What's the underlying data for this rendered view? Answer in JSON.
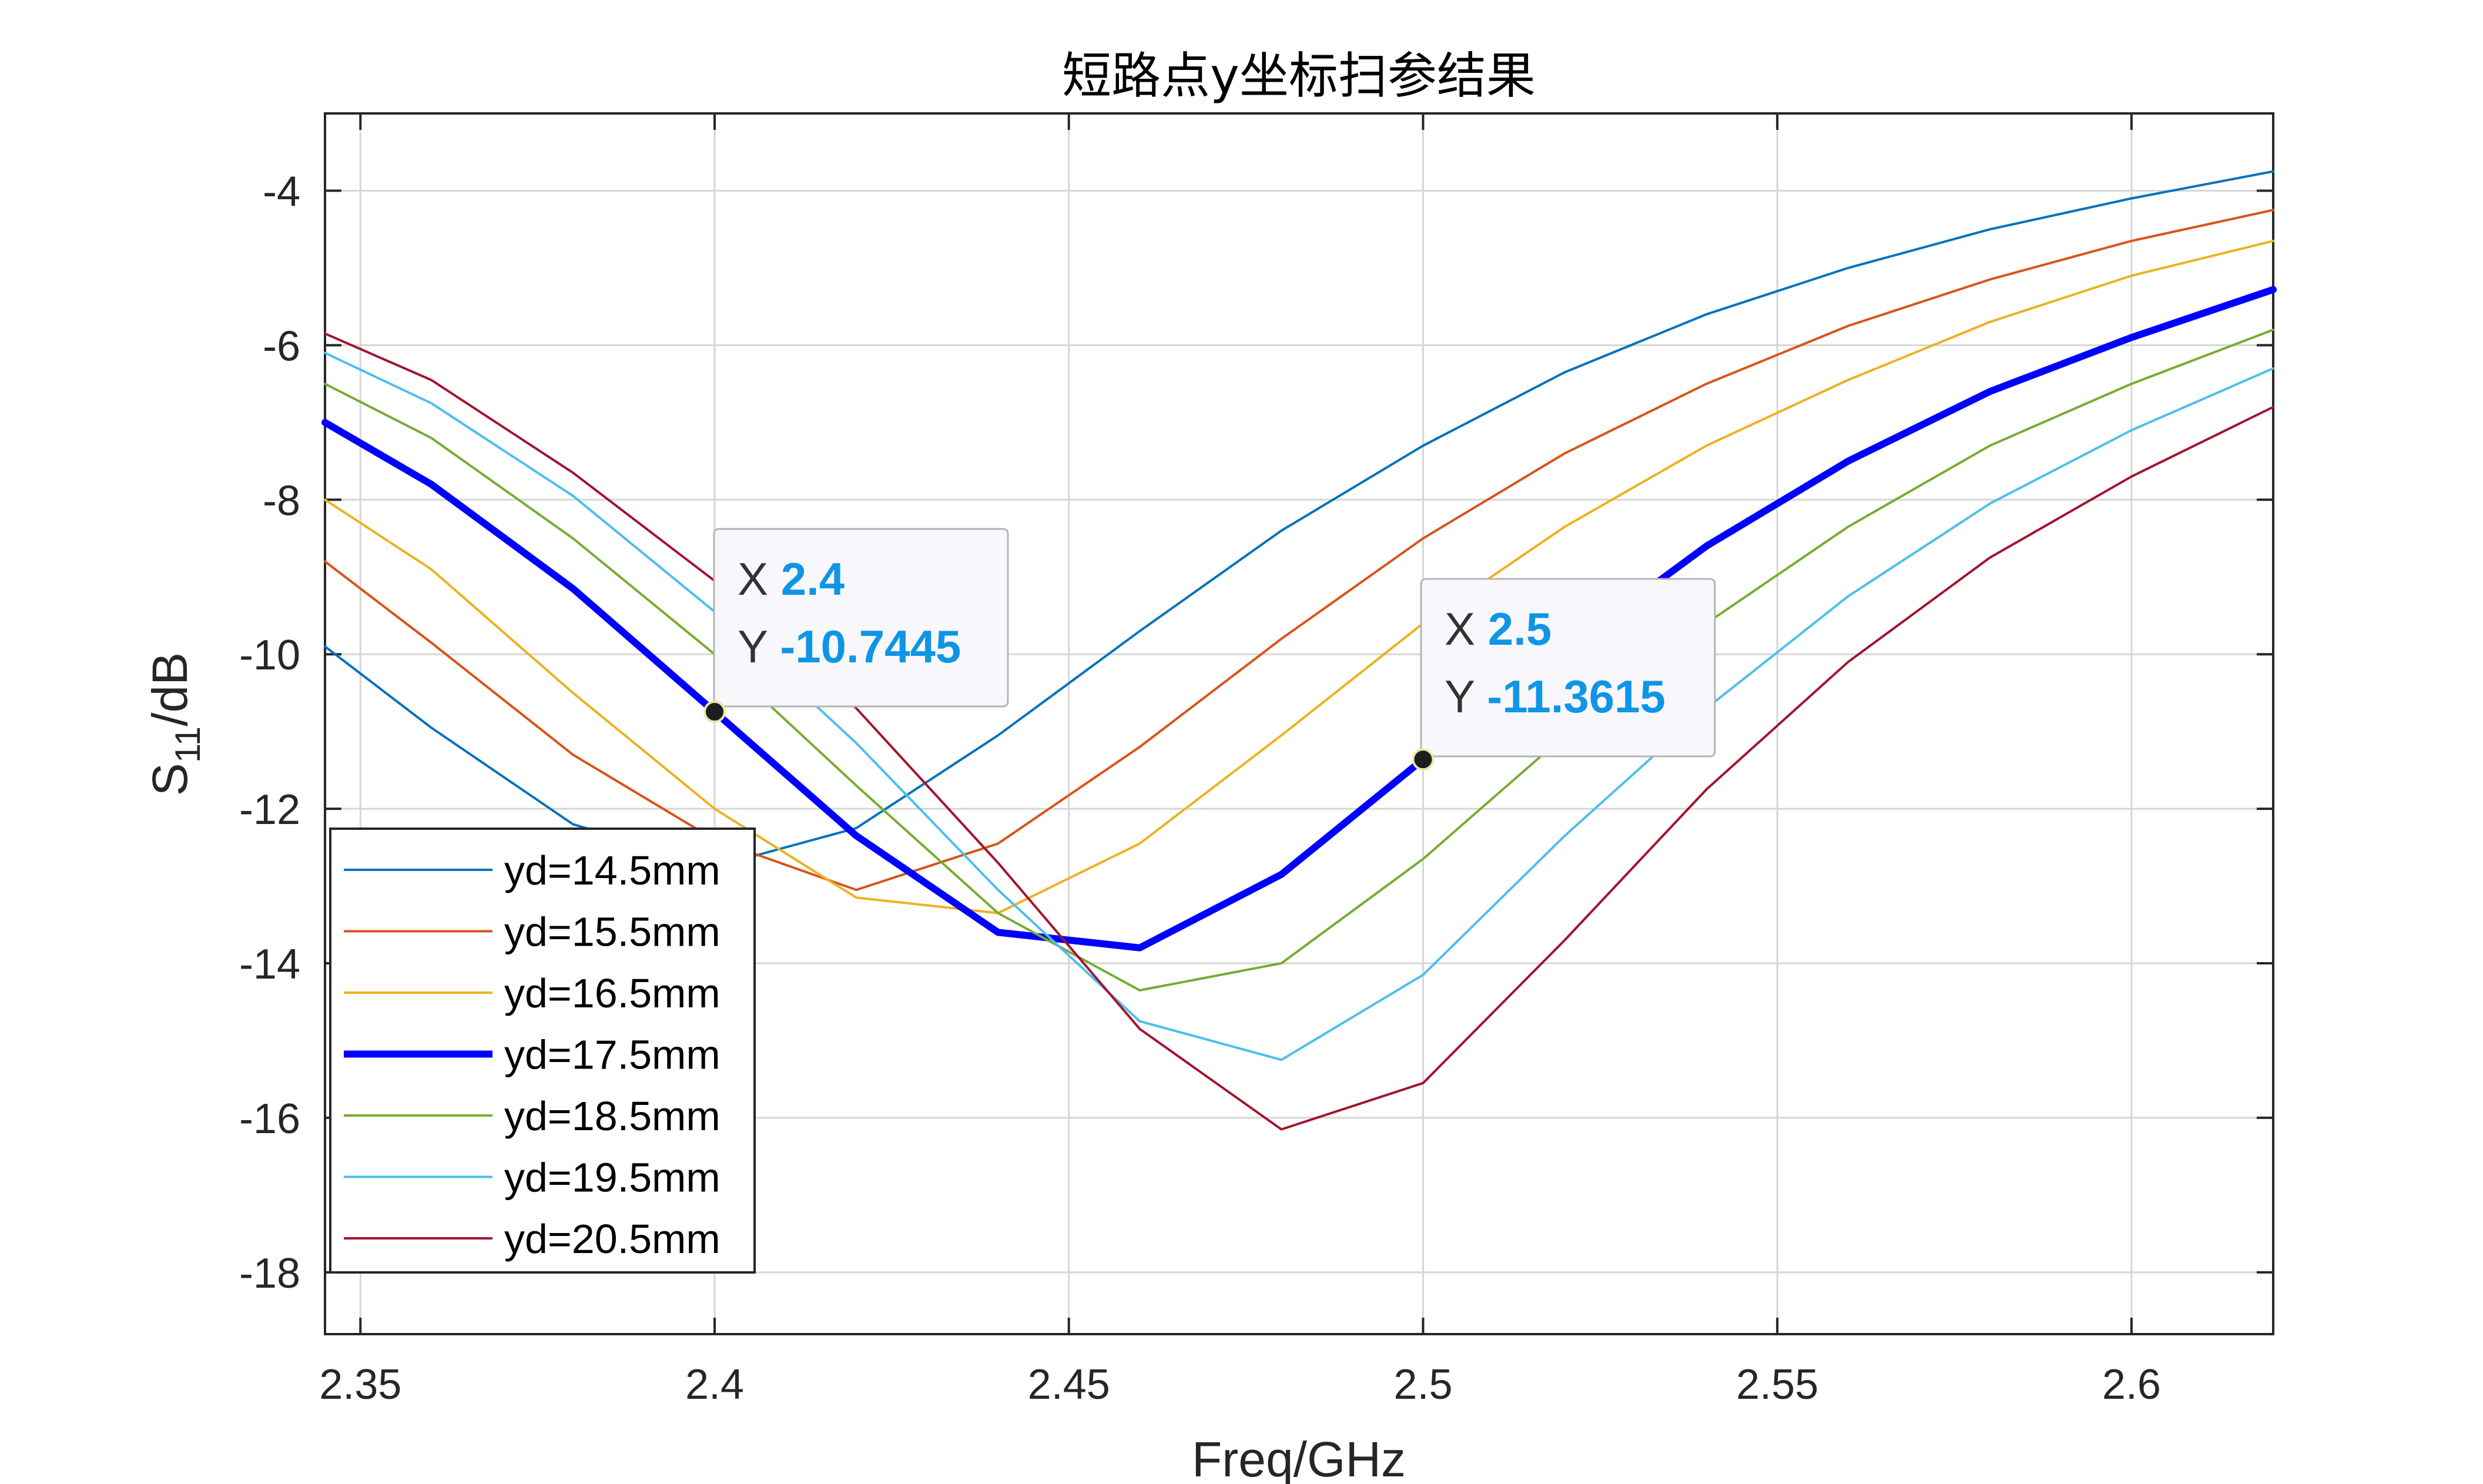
{
  "chart_data": {
    "type": "line",
    "title": "短路点y坐标扫参结果",
    "xlabel": "Freq/GHz",
    "ylabel": {
      "base": "S",
      "sub": "11",
      "rest": "/dB"
    },
    "xlim": [
      2.345,
      2.62
    ],
    "ylim": [
      -18.8,
      -3
    ],
    "xticks": [
      2.35,
      2.4,
      2.45,
      2.5,
      2.55,
      2.6
    ],
    "xtick_labels": [
      "2.35",
      "2.4",
      "2.45",
      "2.5",
      "2.55",
      "2.6"
    ],
    "yticks": [
      -4,
      -6,
      -8,
      -10,
      -12,
      -14,
      -16,
      -18
    ],
    "ytick_labels": [
      "-4",
      "-6",
      "-8",
      "-10",
      "-12",
      "-14",
      "-16",
      "-18"
    ],
    "grid": true,
    "legend_position": "bottom-left",
    "x": [
      2.345,
      2.36,
      2.38,
      2.4,
      2.42,
      2.44,
      2.46,
      2.48,
      2.5,
      2.52,
      2.54,
      2.56,
      2.58,
      2.6,
      2.62
    ],
    "series": [
      {
        "name": "yd=14.5mm",
        "color": "#0072bd",
        "width": 1,
        "values": [
          -9.9,
          -10.95,
          -12.2,
          -12.75,
          -12.25,
          -11.05,
          -9.7,
          -8.4,
          -7.3,
          -6.35,
          -5.6,
          -5.0,
          -4.5,
          -4.1,
          -3.75
        ]
      },
      {
        "name": "yd=15.5mm",
        "color": "#d95319",
        "width": 1,
        "values": [
          -8.8,
          -9.85,
          -11.3,
          -12.4,
          -13.05,
          -12.45,
          -11.2,
          -9.8,
          -8.5,
          -7.4,
          -6.5,
          -5.75,
          -5.15,
          -4.65,
          -4.25
        ]
      },
      {
        "name": "yd=16.5mm",
        "color": "#edb120",
        "width": 1,
        "values": [
          -8.0,
          -8.9,
          -10.5,
          -12.0,
          -13.15,
          -13.35,
          -12.45,
          -11.05,
          -9.6,
          -8.35,
          -7.3,
          -6.45,
          -5.7,
          -5.1,
          -4.65
        ]
      },
      {
        "name": "yd=17.5mm",
        "color": "#0000ff",
        "width": 3,
        "values": [
          -7.0,
          -7.8,
          -9.15,
          -10.7445,
          -12.35,
          -13.6,
          -13.8,
          -12.85,
          -11.3615,
          -9.95,
          -8.6,
          -7.5,
          -6.6,
          -5.9,
          -5.28
        ]
      },
      {
        "name": "yd=18.5mm",
        "color": "#77ac30",
        "width": 1,
        "values": [
          -6.5,
          -7.2,
          -8.5,
          -10.0,
          -11.7,
          -13.35,
          -14.35,
          -14.0,
          -12.65,
          -11.05,
          -9.6,
          -8.35,
          -7.3,
          -6.5,
          -5.8
        ]
      },
      {
        "name": "yd=19.5mm",
        "color": "#4dbeee",
        "width": 1,
        "values": [
          -6.1,
          -6.75,
          -7.95,
          -9.45,
          -11.15,
          -13.05,
          -14.75,
          -15.25,
          -14.15,
          -12.35,
          -10.7,
          -9.25,
          -8.05,
          -7.1,
          -6.3
        ]
      },
      {
        "name": "yd=20.5mm",
        "color": "#a2142f",
        "width": 1,
        "values": [
          -5.85,
          -6.45,
          -7.65,
          -9.05,
          -10.7,
          -12.7,
          -14.85,
          -16.15,
          -15.55,
          -13.7,
          -11.75,
          -10.1,
          -8.75,
          -7.7,
          -6.8
        ]
      }
    ],
    "datatips": [
      {
        "x_key": "X",
        "x_value": "2.4",
        "y_key": "Y",
        "y_value": "-10.7445",
        "x": 2.4,
        "y": -10.7445
      },
      {
        "x_key": "X",
        "x_value": "2.5",
        "y_key": "Y",
        "y_value": "-11.3615",
        "x": 2.5,
        "y": -11.3615
      }
    ]
  }
}
